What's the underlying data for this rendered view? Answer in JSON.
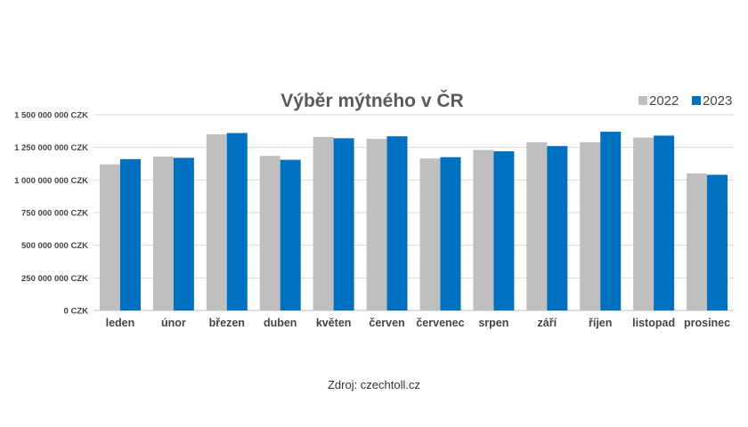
{
  "chart_data": {
    "type": "bar",
    "title": "Výběr mýtného v ČR",
    "xlabel": "",
    "ylabel": "",
    "ylim": [
      0,
      1500000000
    ],
    "y_ticks": [
      0,
      250000000,
      500000000,
      750000000,
      1000000000,
      1250000000,
      1500000000
    ],
    "y_tick_labels": [
      "0 CZK",
      "250 000 000 CZK",
      "500 000 000 CZK",
      "750 000 000 CZK",
      "1 000 000 000 CZK",
      "1 250 000 000 CZK",
      "1 500 000 000 CZK"
    ],
    "grid": true,
    "legend_position": "top-right",
    "categories": [
      "leden",
      "únor",
      "březen",
      "duben",
      "květen",
      "červen",
      "červenec",
      "srpen",
      "září",
      "říjen",
      "listopad",
      "prosinec"
    ],
    "series": [
      {
        "name": "2022",
        "color": "#bfbfbf",
        "values": [
          1120000000,
          1180000000,
          1350000000,
          1185000000,
          1330000000,
          1315000000,
          1165000000,
          1230000000,
          1290000000,
          1290000000,
          1325000000,
          1050000000
        ]
      },
      {
        "name": "2023",
        "color": "#0070c0",
        "values": [
          1160000000,
          1170000000,
          1360000000,
          1155000000,
          1320000000,
          1335000000,
          1175000000,
          1220000000,
          1260000000,
          1370000000,
          1340000000,
          1040000000
        ]
      }
    ]
  },
  "source_text": "Zdroj: czechtoll.cz"
}
